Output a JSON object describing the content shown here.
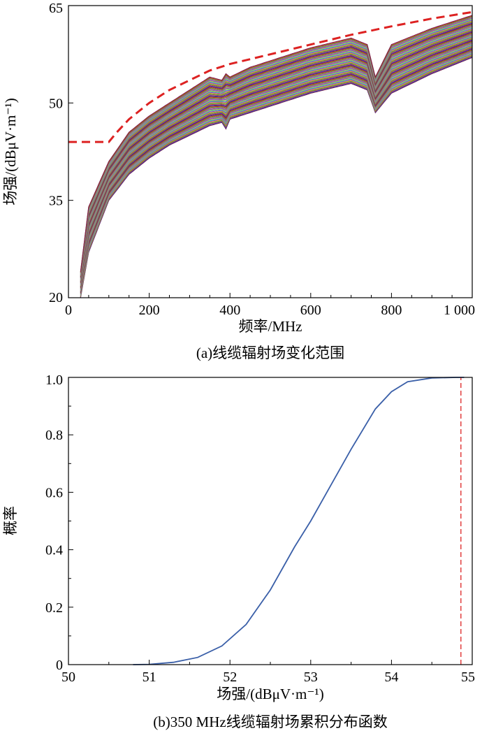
{
  "charts": [
    {
      "caption": "(a)线缆辐射场变化范围",
      "xlabel": "频率/MHz",
      "ylabel": "场强/(dBμV·m⁻¹)",
      "xticks": [
        "0",
        "200",
        "400",
        "600",
        "800",
        "1 000"
      ],
      "yticks": [
        "20",
        "35",
        "50",
        "65"
      ]
    },
    {
      "caption": "(b)350 MHz线缆辐射场累积分布函数",
      "xlabel": "场强/(dBμV·m⁻¹)",
      "ylabel": "概率",
      "xticks": [
        "50",
        "51",
        "52",
        "53",
        "54",
        "55"
      ],
      "yticks": [
        "0",
        "0.2",
        "0.4",
        "0.6",
        "0.8",
        "1.0"
      ]
    }
  ],
  "chart_data": [
    {
      "type": "line",
      "title": "(a)线缆辐射场变化范围",
      "xlabel": "频率/MHz",
      "ylabel": "场强/(dBμV·m⁻¹)",
      "xlim": [
        0,
        1000
      ],
      "ylim": [
        20,
        65
      ],
      "grid": false,
      "band": {
        "description_series": "many overlapping colored curves",
        "x": [
          30,
          50,
          100,
          150,
          200,
          250,
          300,
          350,
          380,
          390,
          400,
          450,
          500,
          600,
          700,
          740,
          760,
          800,
          900,
          1000
        ],
        "upper": [
          24,
          34,
          41,
          45.5,
          48,
          50,
          52,
          54,
          53.5,
          54.5,
          54,
          55.5,
          56.5,
          58.5,
          60,
          59,
          54,
          59,
          61.5,
          63.5
        ],
        "lower": [
          20,
          27,
          35,
          39,
          41.5,
          43.5,
          45,
          46.5,
          47,
          46,
          47.5,
          48.5,
          49.5,
          51.5,
          53,
          52,
          48.5,
          51.5,
          54.5,
          57
        ]
      },
      "series": [
        {
          "style": "dashed",
          "color": "#dd2222",
          "x": [
            0,
            100,
            120,
            150,
            200,
            250,
            300,
            350,
            400,
            500,
            600,
            700,
            800,
            900,
            1000
          ],
          "y": [
            44,
            44,
            45.5,
            47.5,
            50,
            52,
            53.5,
            55,
            56,
            57.5,
            59,
            60.5,
            61.8,
            63,
            64
          ]
        }
      ],
      "band_colors": [
        "#7a1f4a",
        "#1f3fbf",
        "#e03a3a",
        "#2fa84a",
        "#e39a1d",
        "#9c3fbf",
        "#1fb3c7",
        "#c7c01f",
        "#5a5ad0",
        "#d04f8a",
        "#3f9f3f",
        "#c73f1f"
      ]
    },
    {
      "type": "line",
      "title": "(b)350 MHz线缆辐射场累积分布函数",
      "xlabel": "场强/(dBμV·m⁻¹)",
      "ylabel": "概率",
      "xlim": [
        50,
        55
      ],
      "ylim": [
        0,
        1.0
      ],
      "grid": false,
      "series": [
        {
          "style": "solid",
          "color": "#3a5fa8",
          "x": [
            50.8,
            51.0,
            51.3,
            51.6,
            51.9,
            52.2,
            52.5,
            52.8,
            53.0,
            53.2,
            53.5,
            53.8,
            54.0,
            54.2,
            54.5,
            54.8,
            54.9
          ],
          "y": [
            0.0,
            0.001,
            0.008,
            0.025,
            0.065,
            0.14,
            0.26,
            0.41,
            0.5,
            0.6,
            0.75,
            0.89,
            0.95,
            0.985,
            0.998,
            1.0,
            1.0
          ]
        },
        {
          "style": "dashed",
          "color": "#dd2222",
          "x": [
            54.86,
            54.86
          ],
          "y": [
            0.0,
            1.0
          ]
        }
      ]
    }
  ]
}
